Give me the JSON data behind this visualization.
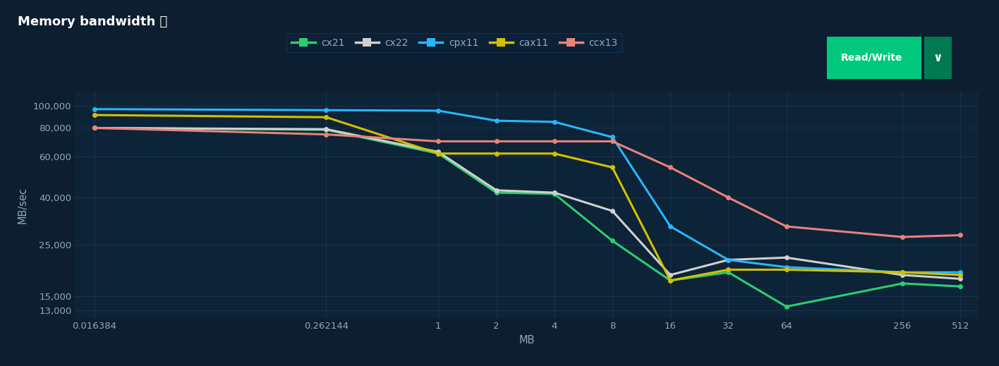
{
  "title": "Memory bandwidth ⓘ",
  "ylabel": "MB/sec",
  "xlabel": "MB",
  "fig_bg_color": "#0c1e30",
  "header_bg_color": "#0a1828",
  "plot_bg_color": "#0d2338",
  "grid_color": "#1a3550",
  "title_color": "#ffffff",
  "tick_color": "#8faabf",
  "x_labels": [
    "0.016384",
    "0.262144",
    "1",
    "2",
    "4",
    "8",
    "16",
    "32",
    "64",
    "256",
    "512"
  ],
  "x_values": [
    0.016384,
    0.262144,
    1,
    2,
    4,
    8,
    16,
    32,
    64,
    256,
    512
  ],
  "series": {
    "cx21": {
      "color": "#2ecc71",
      "values": [
        80000,
        78500,
        62000,
        42000,
        41500,
        26000,
        17500,
        19000,
        13500,
        17000,
        16500
      ]
    },
    "cx22": {
      "color": "#d0d0d0",
      "values": [
        80000,
        79000,
        63000,
        43000,
        42000,
        35000,
        18500,
        21500,
        22000,
        18500,
        17800
      ]
    },
    "cpx11": {
      "color": "#29b6f6",
      "values": [
        96500,
        95500,
        95000,
        86000,
        85000,
        73000,
        30000,
        21500,
        20000,
        19000,
        19000
      ]
    },
    "cax11": {
      "color": "#d4c000",
      "values": [
        91000,
        89000,
        62000,
        62000,
        62000,
        54000,
        17500,
        19500,
        19500,
        19000,
        18500
      ]
    },
    "ccx13": {
      "color": "#e8827a",
      "values": [
        80000,
        75000,
        70000,
        70000,
        70000,
        70000,
        54000,
        40000,
        30000,
        27000,
        27500
      ]
    }
  },
  "y_ticks": [
    13000,
    15000,
    25000,
    40000,
    60000,
    80000,
    100000
  ],
  "y_tick_labels": [
    "13,000",
    "15,000",
    "25,000",
    "40,000",
    "60,000",
    "80,000",
    "100,000"
  ],
  "legend_order": [
    "cx21",
    "cx22",
    "cpx11",
    "cax11",
    "ccx13"
  ],
  "btn_green": "#00c97d",
  "btn_dark_green": "#007a50",
  "btn_text": "Read/Write"
}
